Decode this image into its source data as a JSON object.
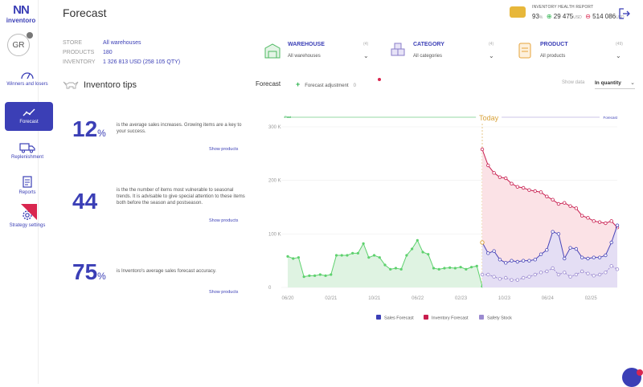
{
  "app": {
    "logo_mark": "NN",
    "logo_word": "inventoro",
    "avatar": "GR"
  },
  "nav": {
    "winners": "Winners and losers",
    "forecast": "Forecast",
    "replenishment": "Replenishment",
    "reports": "Reports",
    "strategy": "Strategy settings"
  },
  "header": {
    "title": "Forecast",
    "health_label": "INVENTORY HEALTH REPORT",
    "health_pct": "93",
    "health_pct_unit": "%",
    "health_plus": "29 475",
    "health_plus_unit": "USD",
    "health_minus": "514 086",
    "health_minus_unit": "USD"
  },
  "meta": {
    "store_label": "STORE",
    "store_value": "All warehouses",
    "products_label": "PRODUCTS",
    "products_value": "180",
    "inventory_label": "INVENTORY",
    "inventory_value": "1 326 813 USD (258 105 QTY)"
  },
  "filters": {
    "warehouse_name": "WAREHOUSE",
    "warehouse_count": "(4)",
    "warehouse_value": "All warehouses",
    "category_name": "CATEGORY",
    "category_count": "(4)",
    "category_value": "All categories",
    "product_name": "PRODUCT",
    "product_count": "(49)",
    "product_value": "All products"
  },
  "tips": {
    "title": "Inventoro tips",
    "t1_num": "12",
    "t1_unit": "%",
    "t1_text": "is the average sales increases. Growing items are a key to your success.",
    "t1_link": "Show products",
    "t2_num": "44",
    "t2_text": "is the the number of items most vulnerable to seasonal trends. It is advisable to give special attention to these items both before the season and postseason.",
    "t2_link": "Show products",
    "t3_num": "75",
    "t3_unit": "%",
    "t3_text": "is Inventoro's average sales forecast accuracy.",
    "t3_link": "Show products"
  },
  "controls": {
    "forecast_label": "Forecast",
    "adjustment_label": "Forecast adjustment",
    "adjustment_badge": "0",
    "show_data_label": "Show data",
    "show_data_value": "In quantity"
  },
  "colors": {
    "brand": "#3b3fb6",
    "sales_green": "#2bb24c",
    "inventory_red": "#c81d4e",
    "safety_purple": "#9b8ad0"
  },
  "chart_data": {
    "type": "line",
    "today_label": "Today",
    "past_label": "Past",
    "forecast_label": "Forecast",
    "y_unit": "K",
    "ylim": [
      0,
      300
    ],
    "y_ticks": [
      0,
      100,
      200,
      300
    ],
    "x_ticks": [
      "06/20",
      "02/21",
      "10/21",
      "06/22",
      "02/23",
      "10/23",
      "06/24",
      "02/25"
    ],
    "legend": [
      "Sales Forecast",
      "Inventory Forecast",
      "Safety Stock"
    ],
    "x": [
      0,
      1,
      2,
      3,
      4,
      5,
      6,
      7,
      8,
      9,
      10,
      11,
      12,
      13,
      14,
      15,
      16,
      17,
      18,
      19,
      20,
      21,
      22,
      23,
      24,
      25,
      26,
      27,
      28,
      29,
      30,
      31,
      32,
      33,
      34,
      35,
      36,
      37,
      38,
      39,
      40,
      41,
      42,
      43,
      44,
      45,
      46,
      47,
      48,
      49,
      50,
      51,
      52,
      53,
      54,
      55,
      56,
      57
    ],
    "today_index": 30,
    "past_sales": [
      58,
      54,
      56,
      20,
      22,
      22,
      24,
      22,
      24,
      60,
      60,
      60,
      64,
      64,
      82,
      56,
      60,
      56,
      42,
      34,
      36,
      34,
      60,
      72,
      88,
      66,
      62,
      36,
      34,
      36,
      37,
      36,
      38,
      34,
      38,
      40,
      2
    ],
    "past_x": [
      0,
      1,
      2,
      3,
      4,
      5,
      6,
      7,
      8,
      9,
      10,
      11,
      12,
      13,
      14,
      15,
      16,
      17,
      18,
      19,
      20,
      21,
      22,
      23,
      24,
      25,
      26,
      27,
      28,
      29,
      30,
      31,
      32,
      33,
      34,
      35,
      36
    ],
    "sales_forecast": [
      84,
      64,
      68,
      52,
      46,
      50,
      48,
      50,
      50,
      52,
      62,
      70,
      104,
      100,
      54,
      74,
      72,
      56,
      54,
      56,
      56,
      60,
      84,
      116
    ],
    "inventory_forecast": [
      258,
      228,
      214,
      206,
      204,
      194,
      188,
      186,
      182,
      180,
      178,
      170,
      164,
      156,
      158,
      152,
      148,
      134,
      130,
      124,
      122,
      120,
      124,
      112
    ],
    "safety_stock": [
      24,
      24,
      20,
      16,
      18,
      14,
      14,
      18,
      20,
      24,
      28,
      30,
      36,
      24,
      28,
      20,
      24,
      30,
      26,
      22,
      24,
      28,
      40,
      34
    ],
    "forecast_x": [
      36,
      37,
      38,
      39,
      40,
      41,
      42,
      43,
      44,
      45,
      46,
      47,
      48,
      49,
      50,
      51,
      52,
      53,
      54,
      55,
      56,
      57,
      58,
      59
    ]
  }
}
